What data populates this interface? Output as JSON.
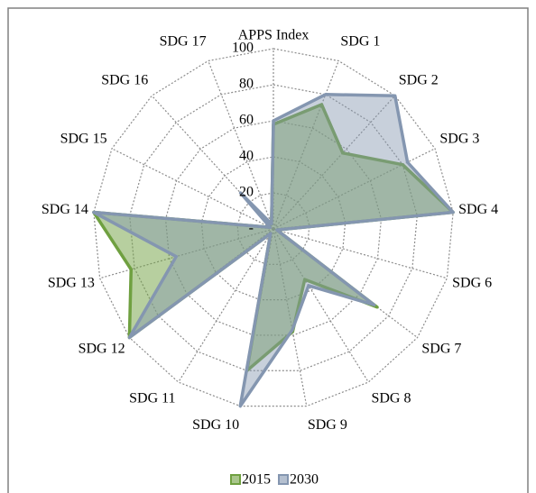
{
  "chart_data": {
    "type": "radar",
    "categories": [
      "APPS Index",
      "SDG 1",
      "SDG 2",
      "SDG 3",
      "SDG 4",
      "SDG 6",
      "SDG 7",
      "SDG 8",
      "SDG 9",
      "SDG 10",
      "SDG 11",
      "SDG 12",
      "SDG 13",
      "SDG 14",
      "SDG 15",
      "SDG 16",
      "SDG 17"
    ],
    "series": [
      {
        "name": "2015",
        "color": "#6fa040",
        "values": [
          58,
          74,
          57,
          80,
          100,
          2,
          72,
          33,
          58,
          80,
          3,
          100,
          82,
          100,
          2,
          3,
          3
        ]
      },
      {
        "name": "2030",
        "color": "#8496b0",
        "values": [
          60,
          80,
          100,
          83,
          100,
          2,
          70,
          37,
          57,
          100,
          3,
          100,
          56,
          100,
          2,
          27,
          3
        ]
      }
    ],
    "ylim": [
      0,
      100
    ],
    "yticks": [
      {
        "value": 0,
        "label": "-"
      },
      20,
      40,
      60,
      80,
      100
    ],
    "grid": true,
    "legend": "bottom"
  }
}
